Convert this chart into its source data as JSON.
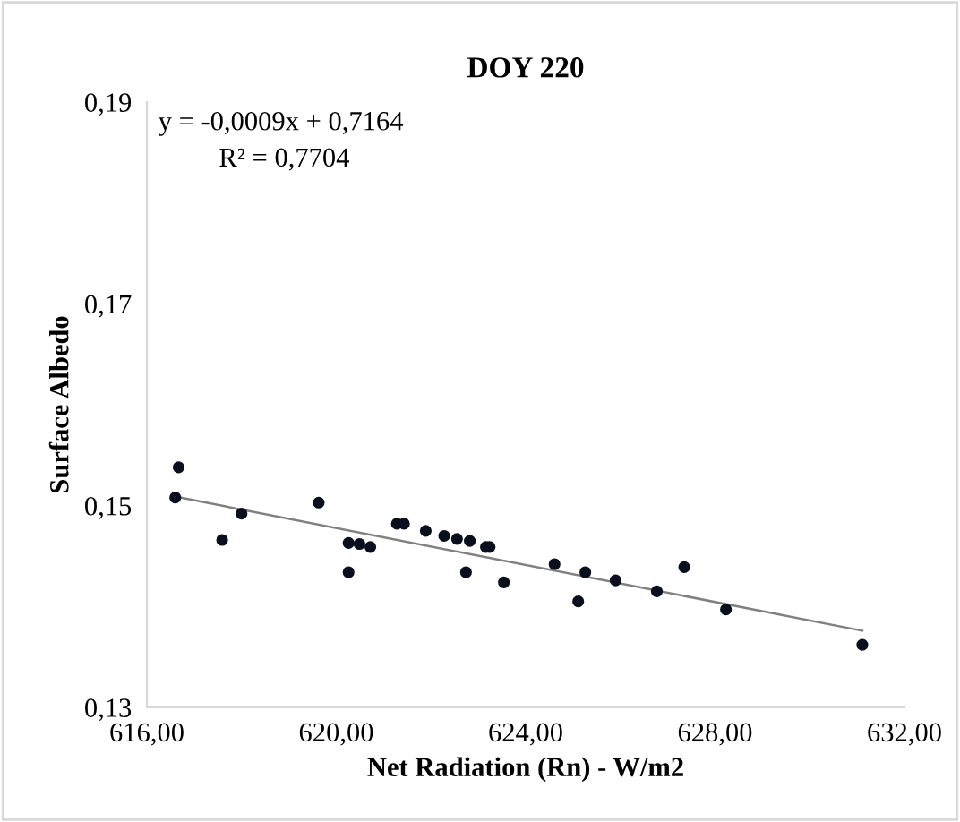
{
  "chart_data": {
    "type": "scatter",
    "title": "DOY 220",
    "xlabel": "Net Radiation (Rn) - W/m2",
    "ylabel": "Surface Albedo",
    "annotations": [
      "y = -0,0009x + 0,7164",
      "R² = 0,7704"
    ],
    "marker": "circle",
    "grid": false,
    "legend": false,
    "xlim": [
      616,
      632
    ],
    "ylim": [
      0.13,
      0.19
    ],
    "xticks": [
      {
        "value": 616,
        "label": "616,00"
      },
      {
        "value": 620,
        "label": "620,00"
      },
      {
        "value": 624,
        "label": "624,00"
      },
      {
        "value": 628,
        "label": "628,00"
      },
      {
        "value": 632,
        "label": "632,00"
      }
    ],
    "yticks": [
      {
        "value": 0.13,
        "label": "0,13"
      },
      {
        "value": 0.15,
        "label": "0,15"
      },
      {
        "value": 0.17,
        "label": "0,17"
      },
      {
        "value": 0.19,
        "label": "0,19"
      }
    ],
    "series": [
      {
        "color": "#0a0f1e",
        "x": [
          616.6,
          616.67,
          617.59,
          618.0,
          619.63,
          620.26,
          620.26,
          620.49,
          620.72,
          621.28,
          621.43,
          621.89,
          622.28,
          622.55,
          622.74,
          622.82,
          623.16,
          623.24,
          623.54,
          624.61,
          625.26,
          625.11,
          625.9,
          626.77,
          627.35,
          628.23,
          631.11
        ],
        "values": [
          0.1508,
          0.1538,
          0.1466,
          0.1492,
          0.1503,
          0.1434,
          0.1463,
          0.1462,
          0.1459,
          0.1482,
          0.1482,
          0.1475,
          0.147,
          0.1467,
          0.1434,
          0.1465,
          0.1459,
          0.1459,
          0.1424,
          0.1442,
          0.1434,
          0.1405,
          0.1426,
          0.1415,
          0.1439,
          0.1397,
          0.1362
        ]
      },
      {
        "type": "line",
        "color": "#808080",
        "x": [
          616.6,
          631.11
        ],
        "values": [
          0.1509,
          0.1376
        ],
        "marker": "none",
        "line_style": "solid"
      }
    ]
  }
}
